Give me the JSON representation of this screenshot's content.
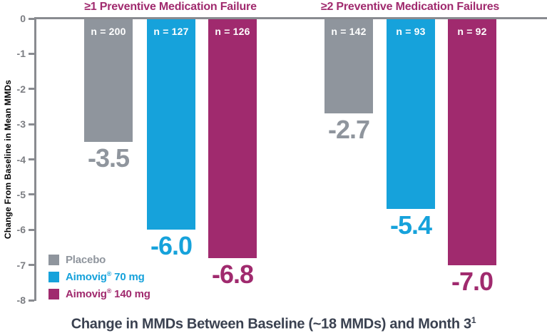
{
  "chart_data": {
    "type": "bar",
    "title": "Change in MMDs Between Baseline (~18 MMDs) and Month 3",
    "title_superscript": "1",
    "ylabel": "Change From Baseline in Mean MMDs",
    "ylim": [
      -8,
      0
    ],
    "yticks": [
      "0",
      "-1",
      "-2",
      "-3",
      "-4",
      "-5",
      "-6",
      "-7",
      "-8"
    ],
    "grid": false,
    "legend_position": "bottom-left",
    "groups": [
      "≥1 Preventive Medication Failure",
      "≥2 Preventive Medication Failures"
    ],
    "series": [
      {
        "name": "Placebo",
        "color": "#8F959D",
        "values": [
          -3.5,
          -2.7
        ],
        "value_labels": [
          "-3.5",
          "-2.7"
        ],
        "n_labels": [
          "n = 200",
          "n = 142"
        ]
      },
      {
        "name": "Aimovig® 70 mg",
        "color": "#16A2DB",
        "values": [
          -6.0,
          -5.4
        ],
        "value_labels": [
          "-6.0",
          "-5.4"
        ],
        "n_labels": [
          "n = 127",
          "n = 93"
        ]
      },
      {
        "name": "Aimovig® 140 mg",
        "color": "#A02A6E",
        "values": [
          -6.8,
          -7.0
        ],
        "value_labels": [
          "-6.8",
          "-7.0"
        ],
        "n_labels": [
          "n = 126",
          "n = 92"
        ]
      }
    ]
  },
  "colors": {
    "header_text": "#A02A6E",
    "axis": "#898B90",
    "tick_label": "#7B7D82",
    "y_title": "#7B7D82",
    "n_label_text": "#FFFFFF",
    "caption_text": "#3A4150",
    "background": "#FFFFFF"
  }
}
